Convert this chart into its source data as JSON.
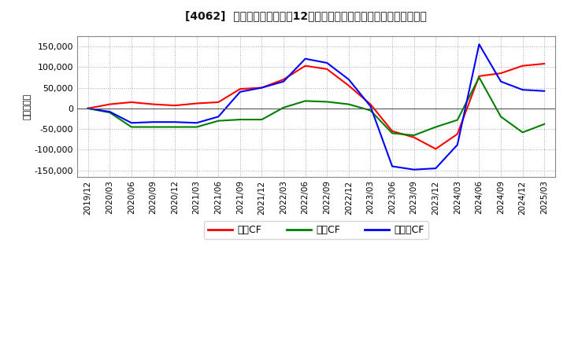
{
  "title": "[4062]  キャッシュフローの12か月移動合計の対前年同期増減額の推移",
  "ylabel": "（百万円）",
  "ylim": [
    -165000,
    175000
  ],
  "yticks": [
    -150000,
    -100000,
    -50000,
    0,
    50000,
    100000,
    150000
  ],
  "background_color": "#ffffff",
  "plot_bg_color": "#ffffff",
  "grid_color": "#aaaaaa",
  "x_labels": [
    "2019/12",
    "2020/03",
    "2020/06",
    "2020/09",
    "2020/12",
    "2021/03",
    "2021/06",
    "2021/09",
    "2021/12",
    "2022/03",
    "2022/06",
    "2022/09",
    "2022/12",
    "2023/03",
    "2023/06",
    "2023/09",
    "2023/12",
    "2024/03",
    "2024/06",
    "2024/09",
    "2024/12",
    "2025/03"
  ],
  "series": {
    "営業CF": {
      "color": "#ff0000",
      "values": [
        0,
        10000,
        15000,
        10000,
        7000,
        12000,
        15000,
        47000,
        50000,
        70000,
        103000,
        95000,
        55000,
        10000,
        -55000,
        -70000,
        -98000,
        -62000,
        78000,
        85000,
        103000,
        108000
      ]
    },
    "投資CF": {
      "color": "#008000",
      "values": [
        0,
        -10000,
        -45000,
        -45000,
        -45000,
        -45000,
        -30000,
        -27000,
        -27000,
        2000,
        18000,
        16000,
        10000,
        -5000,
        -60000,
        -65000,
        -45000,
        -28000,
        75000,
        -20000,
        -58000,
        -38000
      ]
    },
    "フリーCF": {
      "color": "#0000ff",
      "values": [
        0,
        -8000,
        -35000,
        -33000,
        -33000,
        -35000,
        -20000,
        40000,
        50000,
        65000,
        120000,
        110000,
        70000,
        5000,
        -140000,
        -148000,
        -145000,
        -88000,
        155000,
        65000,
        45000,
        42000
      ]
    }
  },
  "legend_labels": [
    "営業CF",
    "投資CF",
    "フリーCF"
  ],
  "legend_colors": [
    "#ff0000",
    "#008000",
    "#0000ff"
  ]
}
